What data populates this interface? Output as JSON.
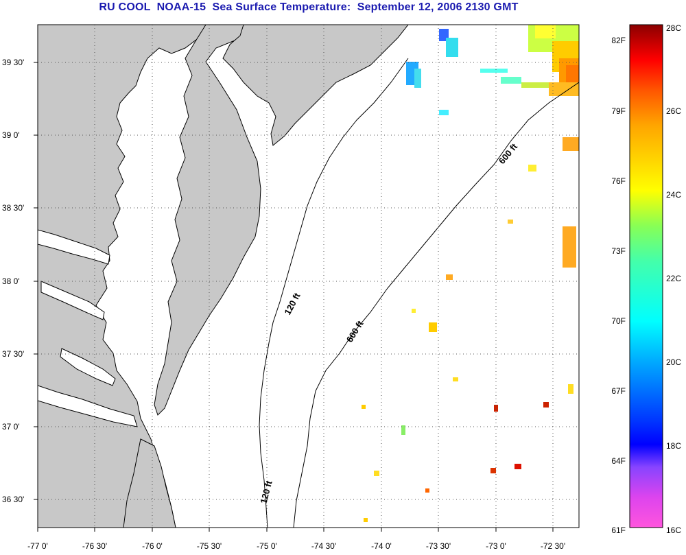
{
  "title": "RU COOL  NOAA-15  Sea Surface Temperature:  September 12, 2006 2130 GMT",
  "axes": {
    "x_ticks": [
      "-77 0'",
      "-76 30'",
      "-76 0'",
      "-75 30'",
      "-75 0'",
      "-74 30'",
      "-74 0'",
      "-73 30'",
      "-73 0'",
      "-72 30'"
    ],
    "y_ticks": [
      "39 30'",
      "39 0'",
      "38 30'",
      "38 0'",
      "37 30'",
      "37 0'",
      "36 30'"
    ],
    "grid": "dotted"
  },
  "contours": [
    {
      "label": "120 ft"
    },
    {
      "label": "120 ft"
    },
    {
      "label": "600 ft"
    },
    {
      "label": "600 ft"
    }
  ],
  "colorbar": {
    "fahrenheit_labels": [
      "82F",
      "79F",
      "76F",
      "73F",
      "70F",
      "67F",
      "64F",
      "61F"
    ],
    "celsius_labels": [
      "28C",
      "26C",
      "24C",
      "22C",
      "20C",
      "18C",
      "16C"
    ],
    "min_c": 16,
    "max_c": 28
  },
  "colors": {
    "land": "#c8c8c8",
    "ocean": "#ffffff",
    "title": "#1b1bb0"
  }
}
